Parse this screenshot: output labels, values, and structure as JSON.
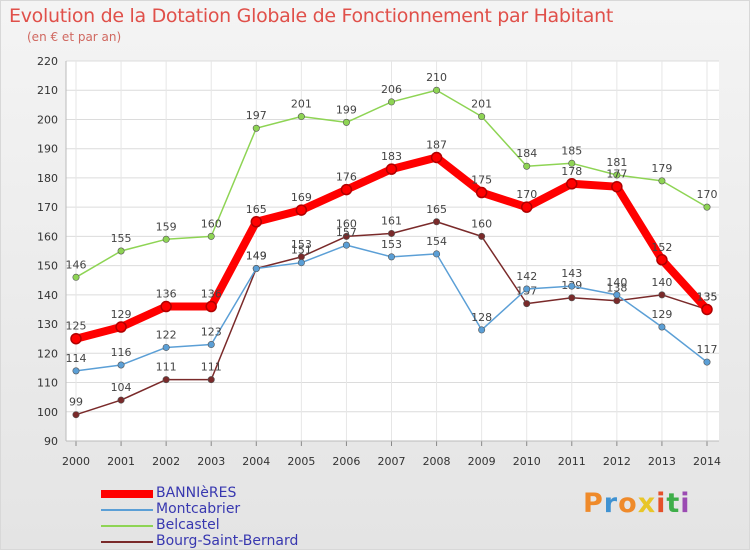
{
  "chart_data": {
    "type": "line",
    "title": "Evolution de la Dotation Globale de Fonctionnement par Habitant",
    "subtitle": "(en € et par an)",
    "xlabel": "",
    "ylabel": "",
    "ylim": [
      90,
      220
    ],
    "ytick_step": 10,
    "grid": true,
    "legend_position": "bottom-left",
    "categories": [
      "2000",
      "2001",
      "2002",
      "2003",
      "2004",
      "2005",
      "2006",
      "2007",
      "2008",
      "2009",
      "2010",
      "2011",
      "2012",
      "2013",
      "2014"
    ],
    "series": [
      {
        "name": "BANNIèRES",
        "color": "#ff0000",
        "width": "heavy",
        "values": [
          125,
          129,
          136,
          136,
          165,
          169,
          176,
          183,
          187,
          175,
          170,
          178,
          177,
          152,
          135
        ]
      },
      {
        "name": "Montcabrier",
        "color": "#5b9fd6",
        "width": "thin",
        "values": [
          114,
          116,
          122,
          123,
          149,
          151,
          157,
          153,
          154,
          128,
          142,
          143,
          140,
          129,
          117
        ]
      },
      {
        "name": "Belcastel",
        "color": "#8ed454",
        "width": "thin",
        "values": [
          146,
          155,
          159,
          160,
          197,
          201,
          199,
          206,
          210,
          201,
          184,
          185,
          181,
          179,
          170
        ]
      },
      {
        "name": "Bourg-Saint-Bernard",
        "color": "#7a2a2a",
        "width": "thin",
        "values": [
          99,
          104,
          111,
          111,
          149,
          153,
          160,
          161,
          165,
          160,
          137,
          139,
          138,
          140,
          135
        ]
      }
    ]
  },
  "brand": {
    "letters": [
      "P",
      "r",
      "o",
      "x",
      "i",
      "t",
      "i"
    ],
    "colors": [
      "#ef8a2a",
      "#3f92d2",
      "#ef8a2a",
      "#e8c628",
      "#e5502a",
      "#3fae4a",
      "#9b4bb2"
    ]
  }
}
